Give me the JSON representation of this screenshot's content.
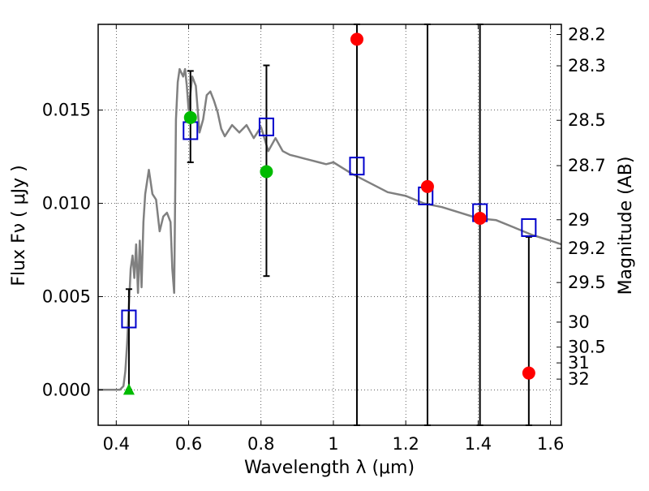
{
  "chart_data": {
    "type": "scatter",
    "xlabel": "Wavelength  λ (μm)",
    "ylabel_left": "Flux  Fν  ( μJy )",
    "ylabel_right": "Magnitude (AB)",
    "xlim": [
      0.35,
      1.63
    ],
    "ylim": [
      -0.0019,
      0.0196
    ],
    "grid": true,
    "x_ticks": [
      {
        "value": 0.4,
        "label": "0.4"
      },
      {
        "value": 0.6,
        "label": "0.6"
      },
      {
        "value": 0.8,
        "label": "0.8"
      },
      {
        "value": 1.0,
        "label": "1"
      },
      {
        "value": 1.2,
        "label": "1.2"
      },
      {
        "value": 1.4,
        "label": "1.4"
      },
      {
        "value": 1.6,
        "label": "1.6"
      }
    ],
    "y_ticks": [
      {
        "value": 0.0,
        "label": "0.000"
      },
      {
        "value": 0.005,
        "label": "0.005"
      },
      {
        "value": 0.01,
        "label": "0.010"
      },
      {
        "value": 0.015,
        "label": "0.015"
      }
    ],
    "mag_ticks": [
      "28.2",
      "28.3",
      "28.5",
      "28.7",
      "29",
      "29.2",
      "29.5",
      "30",
      "30.5",
      "31",
      "32"
    ],
    "colors": {
      "model": "#808080",
      "model_photometry": "#0000cc",
      "detections": "#ff0000",
      "green_points": "#00bb00",
      "error_bars": "#000000"
    },
    "model_spectrum": {
      "x": [
        0.35,
        0.41,
        0.42,
        0.425,
        0.43,
        0.435,
        0.44,
        0.445,
        0.45,
        0.455,
        0.46,
        0.465,
        0.47,
        0.475,
        0.48,
        0.49,
        0.5,
        0.51,
        0.52,
        0.53,
        0.54,
        0.55,
        0.555,
        0.56,
        0.565,
        0.57,
        0.575,
        0.58,
        0.585,
        0.59,
        0.595,
        0.6,
        0.61,
        0.62,
        0.63,
        0.64,
        0.65,
        0.66,
        0.67,
        0.68,
        0.69,
        0.7,
        0.72,
        0.74,
        0.76,
        0.78,
        0.8,
        0.82,
        0.84,
        0.86,
        0.88,
        0.9,
        0.92,
        0.94,
        0.96,
        0.98,
        1.0,
        1.05,
        1.1,
        1.15,
        1.2,
        1.25,
        1.3,
        1.35,
        1.4,
        1.45,
        1.5,
        1.55,
        1.6,
        1.63
      ],
      "y": [
        0.0,
        0.0,
        0.0002,
        0.001,
        0.0025,
        0.0045,
        0.0065,
        0.0072,
        0.006,
        0.0078,
        0.0052,
        0.008,
        0.0055,
        0.009,
        0.0105,
        0.0118,
        0.0105,
        0.0102,
        0.0085,
        0.0093,
        0.0095,
        0.009,
        0.0065,
        0.0052,
        0.0145,
        0.0165,
        0.0172,
        0.017,
        0.0168,
        0.0172,
        0.0163,
        0.015,
        0.0168,
        0.0163,
        0.0138,
        0.0145,
        0.0158,
        0.016,
        0.0155,
        0.0149,
        0.014,
        0.0136,
        0.0142,
        0.0138,
        0.0142,
        0.0135,
        0.0141,
        0.0128,
        0.0135,
        0.0128,
        0.0126,
        0.0125,
        0.0124,
        0.0123,
        0.0122,
        0.0121,
        0.0122,
        0.0116,
        0.0111,
        0.0106,
        0.0104,
        0.01,
        0.0098,
        0.0095,
        0.0092,
        0.0091,
        0.0087,
        0.0083,
        0.008,
        0.0078
      ]
    },
    "model_photometry": {
      "x": [
        0.435,
        0.605,
        0.815,
        1.065,
        1.255,
        1.405,
        1.54
      ],
      "y": [
        0.0038,
        0.0139,
        0.0141,
        0.012,
        0.0104,
        0.0095,
        0.0087
      ]
    },
    "detections": [
      {
        "x": 1.065,
        "y": 0.0188,
        "err_low": -0.0019,
        "err_high": 0.0196
      },
      {
        "x": 1.26,
        "y": 0.0109,
        "err_low": -0.0019,
        "err_high": 0.0196
      },
      {
        "x": 1.405,
        "y": 0.0092,
        "err_low": -0.0019,
        "err_high": 0.0196
      },
      {
        "x": 1.54,
        "y": 0.0009,
        "err_low": -0.0019,
        "err_high": 0.0082
      }
    ],
    "green_points": [
      {
        "x": 0.605,
        "y": 0.0146,
        "err_low": 0.0122,
        "err_high": 0.0171
      },
      {
        "x": 0.815,
        "y": 0.0117,
        "err_low": 0.0061,
        "err_high": 0.0174
      }
    ],
    "upper_limit": {
      "x": 0.435,
      "y": 0.0,
      "err_low": 0.0,
      "err_high": 0.0054
    }
  }
}
